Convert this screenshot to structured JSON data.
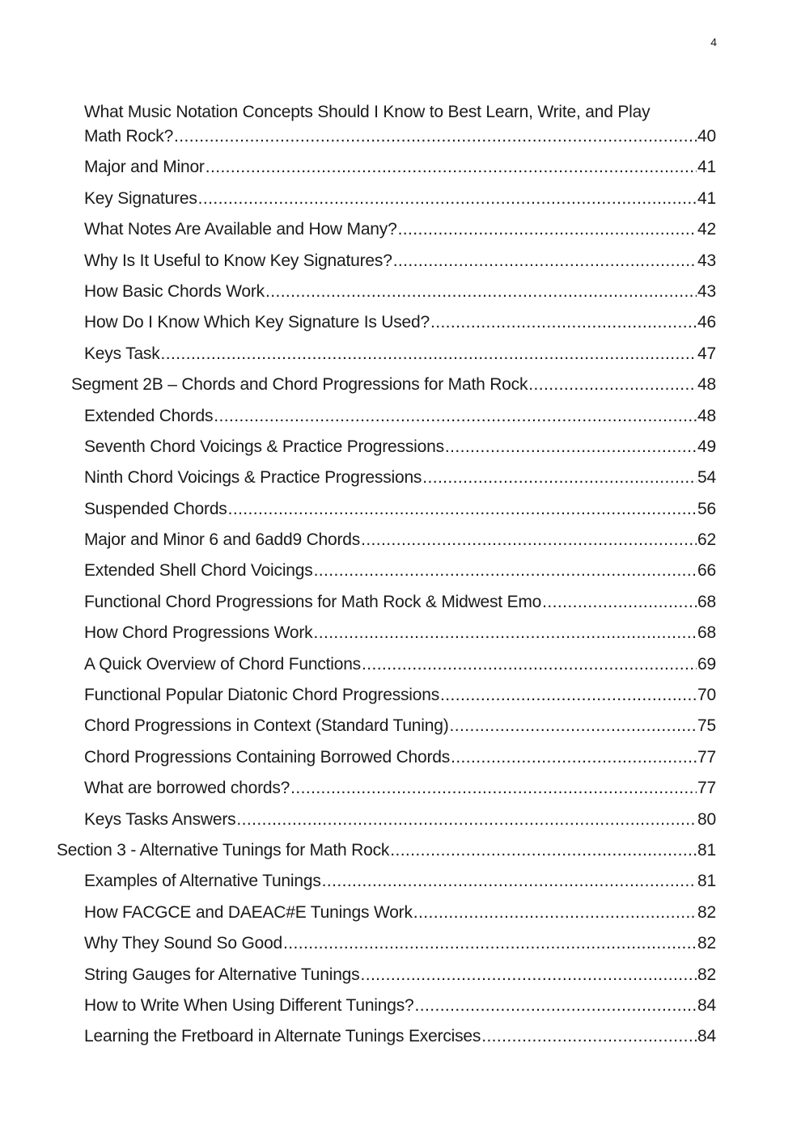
{
  "page_number": "4",
  "entries": [
    {
      "level": 3,
      "title_line1": "What Music Notation Concepts Should I Know to Best Learn, Write, and Play",
      "title": "Math Rock?",
      "page": "40"
    },
    {
      "level": 3,
      "title": "Major and Minor",
      "page": "41"
    },
    {
      "level": 3,
      "title": "Key Signatures",
      "page": "41"
    },
    {
      "level": 3,
      "title": "What Notes Are Available and How Many?",
      "page": "42"
    },
    {
      "level": 3,
      "title": "Why Is It Useful to Know Key Signatures?",
      "page": "43"
    },
    {
      "level": 3,
      "title": "How Basic Chords Work",
      "page": "43"
    },
    {
      "level": 3,
      "title": "How Do I Know Which Key Signature Is Used?",
      "page": "46"
    },
    {
      "level": 3,
      "title": "Keys Task",
      "page": "47"
    },
    {
      "level": 2,
      "title": "Segment 2B – Chords and Chord Progressions for Math Rock",
      "page": "48"
    },
    {
      "level": 3,
      "title": "Extended Chords",
      "page": "48"
    },
    {
      "level": 3,
      "title": "Seventh Chord Voicings & Practice Progressions",
      "page": "49"
    },
    {
      "level": 3,
      "title": "Ninth Chord Voicings & Practice Progressions",
      "page": "54"
    },
    {
      "level": 3,
      "title": "Suspended Chords",
      "page": "56"
    },
    {
      "level": 3,
      "title": "Major and Minor 6 and 6add9 Chords",
      "page": "62"
    },
    {
      "level": 3,
      "title": "Extended Shell Chord Voicings",
      "page": "66"
    },
    {
      "level": 3,
      "title": "Functional Chord Progressions for Math Rock & Midwest Emo",
      "page": "68"
    },
    {
      "level": 3,
      "title": "How Chord Progressions Work",
      "page": "68"
    },
    {
      "level": 3,
      "title": "A Quick Overview of Chord Functions",
      "page": "69"
    },
    {
      "level": 3,
      "title": "Functional Popular Diatonic Chord Progressions",
      "page": "70"
    },
    {
      "level": 3,
      "title": "Chord Progressions in Context (Standard Tuning)",
      "page": "75"
    },
    {
      "level": 3,
      "title": "Chord Progressions Containing Borrowed Chords",
      "page": "77"
    },
    {
      "level": 3,
      "title": "What are borrowed chords?",
      "page": "77"
    },
    {
      "level": 3,
      "title": "Keys Tasks Answers",
      "page": "80"
    },
    {
      "level": 1,
      "title": "Section 3 - Alternative Tunings for Math Rock",
      "page": "81"
    },
    {
      "level": 3,
      "title": "Examples of Alternative Tunings",
      "page": "81"
    },
    {
      "level": 3,
      "title": "How FACGCE and DAEAC#E Tunings Work",
      "page": "82"
    },
    {
      "level": 3,
      "title": "Why They Sound So Good",
      "page": "82"
    },
    {
      "level": 3,
      "title": "String Gauges for Alternative Tunings",
      "page": "82"
    },
    {
      "level": 3,
      "title": "How to Write When Using Different Tunings?",
      "page": "84"
    },
    {
      "level": 3,
      "title": "Learning the Fretboard in Alternate Tunings Exercises",
      "page": "84"
    }
  ]
}
